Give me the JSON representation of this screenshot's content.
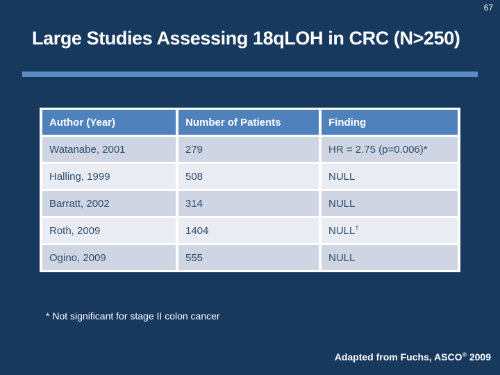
{
  "slide": {
    "page_number": "67",
    "title": "Large Studies Assessing 18qLOH in CRC (N>250)",
    "footnote": "* Not significant for stage II colon cancer",
    "credit": {
      "prefix": "Adapted from Fuchs, ASCO",
      "symbol": "®",
      "suffix": " 2009"
    }
  },
  "table": {
    "headers": [
      "Author (Year)",
      "Number of Patients",
      "Finding"
    ],
    "rows": [
      {
        "author": "Watanabe, 2001",
        "patients": "279",
        "finding": "HR = 2.75 (p=0.006)*",
        "finding_sup": ""
      },
      {
        "author": "Halling, 1999",
        "patients": "508",
        "finding": "NULL",
        "finding_sup": ""
      },
      {
        "author": "Barratt, 2002",
        "patients": "314",
        "finding": "NULL",
        "finding_sup": ""
      },
      {
        "author": "Roth, 2009",
        "patients": "1404",
        "finding": "NULL",
        "finding_sup": "†"
      },
      {
        "author": "Ogino, 2009",
        "patients": "555",
        "finding": "NULL",
        "finding_sup": ""
      }
    ]
  },
  "colors": {
    "background": "#18395E",
    "accent_bar": "#5B8AC6",
    "table_header_bg": "#4F81BD",
    "row_dark_bg": "#CFD5E2",
    "row_light_bg": "#E9EDF3",
    "cell_text": "#2E4C6E",
    "title_text": "#FFFFFF",
    "table_border": "#FFFFFF"
  }
}
